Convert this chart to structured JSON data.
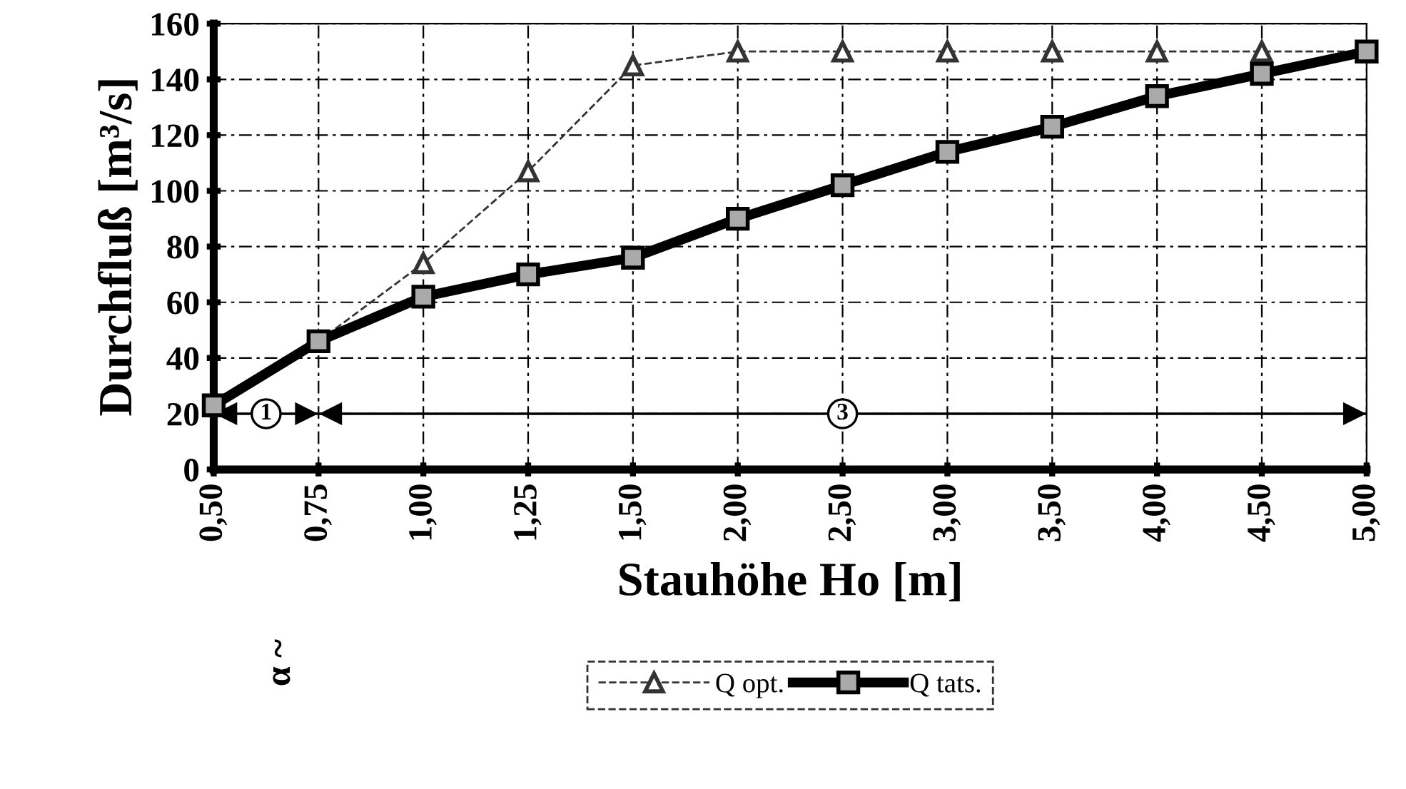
{
  "chart_data": {
    "type": "line",
    "xlabel": "Stauhöhe Ho [m]",
    "ylabel": "Durchfluß [m³/s]",
    "categories": [
      "0,50",
      "0,75",
      "1,00",
      "1,25",
      "1,50",
      "2,00",
      "2,50",
      "3,00",
      "3,50",
      "4,00",
      "4,50",
      "5,00"
    ],
    "series": [
      {
        "name": "Q opt.",
        "color": "#333333",
        "marker": "triangle",
        "line_style": "dashed",
        "values": [
          null,
          46,
          74,
          107,
          145,
          150,
          150,
          150,
          150,
          150,
          150,
          150
        ]
      },
      {
        "name": "Q tats.",
        "color": "#000000",
        "marker": "square",
        "line_style": "solid",
        "values": [
          23,
          46,
          62,
          70,
          76,
          90,
          102,
          114,
          123,
          134,
          142,
          150
        ]
      }
    ],
    "ylim": [
      0,
      160
    ],
    "yticks": [
      0,
      20,
      40,
      60,
      80,
      100,
      120,
      140,
      160
    ],
    "grid": true,
    "ref_lines": [
      {
        "axis": "y",
        "value": 20
      }
    ],
    "legend": "bottom",
    "annotations": [
      "1",
      "3",
      "α ~"
    ]
  }
}
